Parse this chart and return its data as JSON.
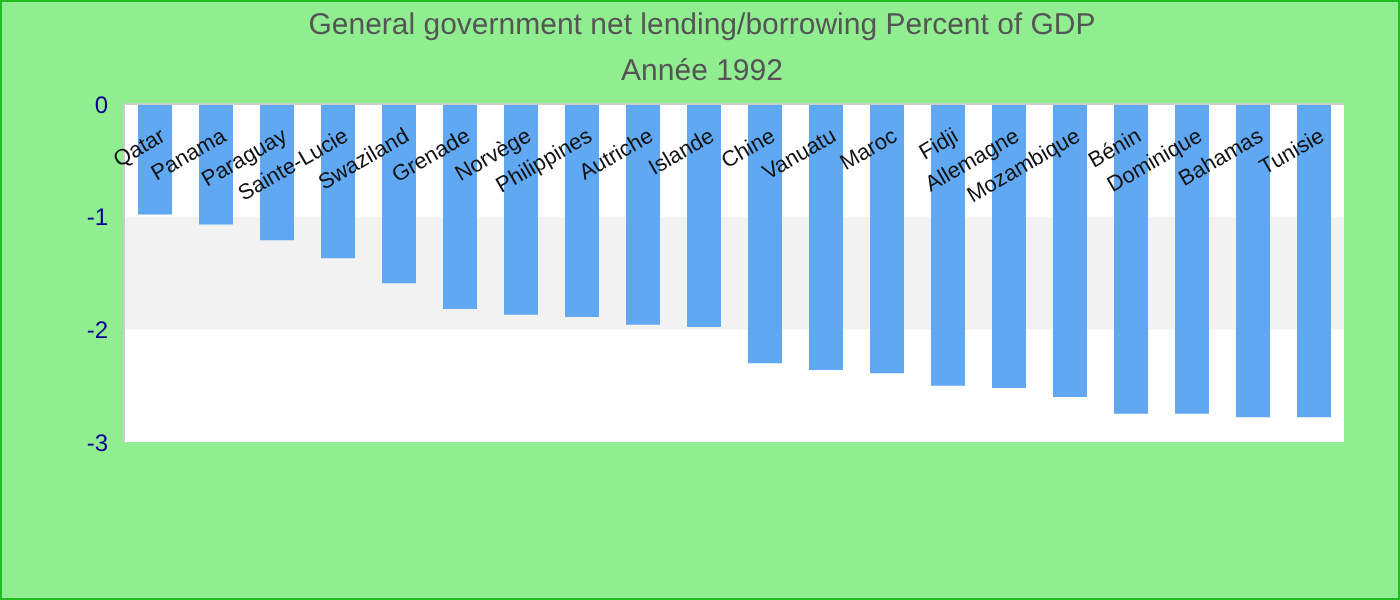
{
  "chart_data": {
    "type": "bar",
    "title": "General government net lending/borrowing  Percent of GDP",
    "subtitle": "Année 1992",
    "categories": [
      "Qatar",
      "Panama",
      "Paraguay",
      "Sainte-Lucie",
      "Swaziland",
      "Grenade",
      "Norvège",
      "Philippines",
      "Autriche",
      "Islande",
      "Chine",
      "Vanuatu",
      "Maroc",
      "Fidji",
      "Allemagne",
      "Mozambique",
      "Bénin",
      "Dominique",
      "Bahamas",
      "Tunisie"
    ],
    "values": [
      -0.98,
      -1.07,
      -1.21,
      -1.37,
      -1.59,
      -1.82,
      -1.87,
      -1.89,
      -1.96,
      -1.98,
      -2.3,
      -2.36,
      -2.39,
      -2.5,
      -2.52,
      -2.6,
      -2.75,
      -2.75,
      -2.78,
      -2.78
    ],
    "color": "#61a8f2",
    "ylim": [
      -3,
      0
    ],
    "yticks": [
      0,
      -1,
      -2,
      -3
    ],
    "bands": [
      {
        "axis": "y",
        "from": -1,
        "to": -2,
        "color": "#f2f2f2"
      }
    ]
  }
}
